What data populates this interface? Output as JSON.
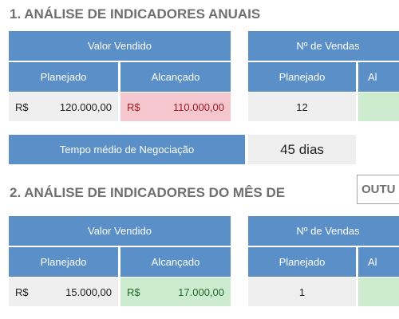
{
  "section1": {
    "title": "1. ANÁLISE DE INDICADORES ANUAIS",
    "valor_vendido": {
      "header": "Valor Vendido",
      "planejado_label": "Planejado",
      "alcancado_label": "Alcançado",
      "planejado": {
        "currency": "R$",
        "value": "120.000,00"
      },
      "alcancado": {
        "currency": "R$",
        "value": "110.000,00",
        "status_color": "#f4c7ce"
      }
    },
    "num_vendas": {
      "header": "Nº de Vendas",
      "planejado_label": "Planejado",
      "alcancado_label_partial": "Al",
      "planejado_value": "12",
      "alcancado_status_color": "#cdeccf"
    },
    "tempo_medio": {
      "label": "Tempo médio de Negociação",
      "value": "45 dias"
    }
  },
  "section2": {
    "title": "2. ANÁLISE DE INDICADORES DO MÊS DE",
    "month_partial": "OUTU",
    "valor_vendido": {
      "header": "Valor Vendido",
      "planejado_label": "Planejado",
      "alcancado_label": "Alcançado",
      "planejado": {
        "currency": "R$",
        "value": "15.000,00"
      },
      "alcancado": {
        "currency": "R$",
        "value": "17.000,00",
        "status_color": "#cdeccf"
      }
    },
    "num_vendas": {
      "header": "Nº de Vendas",
      "planejado_label": "Planejado",
      "alcancado_label_partial": "Al",
      "planejado_value": "1",
      "alcancado_status_color": "#cdeccf"
    }
  },
  "colors": {
    "header_blue": "#5b8fc7",
    "title_grey": "#6f6f6f",
    "cell_grey": "#efefef",
    "negative_pink": "#f4c7ce",
    "positive_green": "#cdeccf"
  }
}
